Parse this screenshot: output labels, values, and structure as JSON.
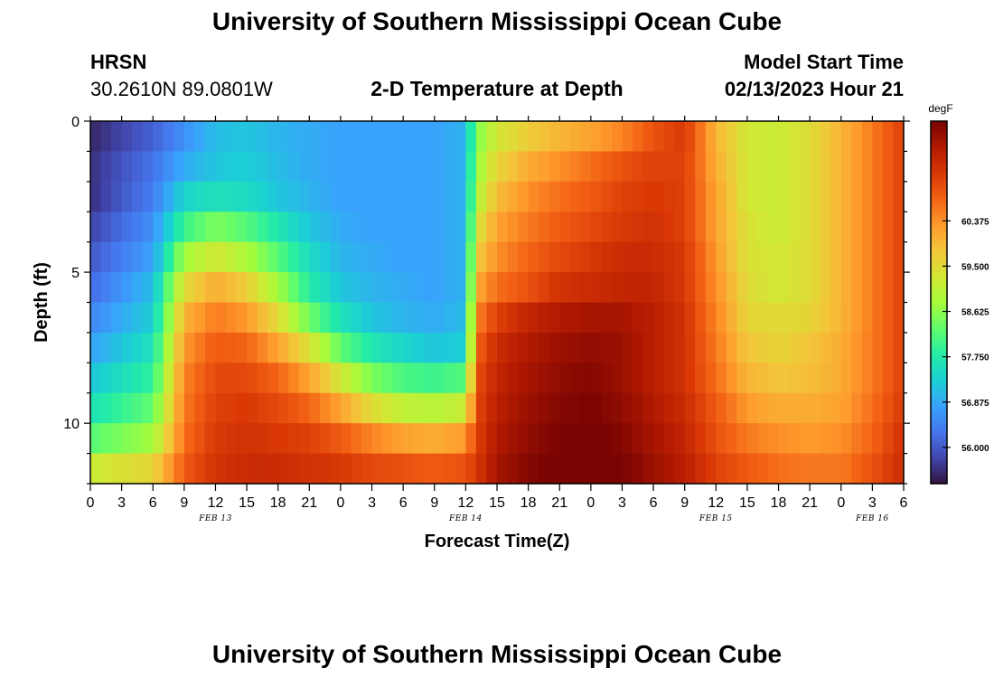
{
  "header": {
    "title": "University of Southern Mississippi Ocean Cube",
    "station": "HRSN",
    "coords": "30.2610N  89.0801W",
    "plot_title": "2-D Temperature at Depth",
    "model_label": "Model Start Time",
    "model_time": "02/13/2023 Hour 21"
  },
  "footer": {
    "title": "University of Southern Mississippi Ocean Cube"
  },
  "chart_data": {
    "type": "heatmap",
    "title": "2-D Temperature at Depth",
    "xlabel": "Forecast Time(Z)",
    "ylabel": "Depth (ft)",
    "x_hours_range": [
      0,
      78
    ],
    "x_tick_labels": [
      "0",
      "3",
      "6",
      "9",
      "12",
      "15",
      "18",
      "21",
      "0",
      "3",
      "6",
      "9",
      "12",
      "15",
      "18",
      "21",
      "0",
      "3",
      "6",
      "9",
      "12",
      "15",
      "18",
      "21",
      "0",
      "3",
      "6"
    ],
    "date_labels": [
      {
        "text": "FEB 13",
        "hour": 12
      },
      {
        "text": "FEB 14",
        "hour": 36
      },
      {
        "text": "FEB 15",
        "hour": 60
      },
      {
        "text": "FEB 16",
        "hour": 75
      }
    ],
    "ylim": [
      0,
      12
    ],
    "y_tick_labels": [
      {
        "value": 0,
        "label": "0"
      },
      {
        "value": 5,
        "label": "5"
      },
      {
        "value": 10,
        "label": "10"
      }
    ],
    "depth_levels": [
      0.5,
      1.5,
      2.5,
      3.5,
      4.5,
      5.5,
      6.5,
      7.5,
      8.5,
      9.5,
      10.5,
      11.5
    ],
    "hours": [
      0,
      6,
      9,
      12,
      15,
      18,
      21,
      24,
      27,
      30,
      33,
      36,
      37,
      39,
      42,
      45,
      48,
      51,
      54,
      57,
      60,
      63,
      66,
      69,
      72,
      75,
      78
    ],
    "values_degF": [
      [
        55.5,
        56.1,
        56.6,
        57.1,
        57.2,
        57.0,
        56.9,
        56.8,
        56.8,
        56.8,
        56.8,
        57.0,
        58.5,
        59.3,
        59.7,
        60.0,
        60.2,
        60.5,
        61.0,
        61.3,
        60.0,
        59.3,
        59.2,
        59.5,
        60.0,
        60.6,
        61.2
      ],
      [
        55.6,
        56.3,
        56.9,
        57.2,
        57.3,
        57.1,
        56.9,
        56.8,
        56.8,
        56.8,
        56.8,
        57.0,
        58.7,
        59.6,
        60.1,
        60.4,
        60.7,
        61.0,
        61.2,
        61.2,
        60.1,
        59.3,
        59.2,
        59.5,
        60.0,
        60.6,
        61.2
      ],
      [
        55.6,
        56.4,
        57.4,
        57.6,
        57.5,
        57.2,
        57.0,
        56.8,
        56.8,
        56.8,
        56.8,
        57.0,
        58.9,
        59.9,
        60.4,
        60.7,
        60.9,
        61.2,
        61.3,
        61.2,
        60.2,
        59.3,
        59.2,
        59.5,
        60.0,
        60.6,
        61.2
      ],
      [
        55.8,
        56.6,
        58.0,
        58.5,
        58.2,
        57.7,
        57.2,
        56.9,
        56.8,
        56.8,
        56.8,
        57.0,
        59.3,
        60.2,
        60.6,
        60.9,
        61.1,
        61.3,
        61.4,
        61.2,
        60.2,
        59.4,
        59.2,
        59.5,
        60.0,
        60.6,
        61.2
      ],
      [
        56.0,
        56.8,
        58.8,
        59.3,
        58.9,
        58.2,
        57.5,
        57.0,
        56.9,
        56.8,
        56.8,
        57.0,
        59.7,
        60.4,
        60.8,
        61.1,
        61.3,
        61.5,
        61.5,
        61.3,
        60.3,
        59.4,
        59.3,
        59.5,
        60.0,
        60.6,
        61.2
      ],
      [
        56.2,
        57.1,
        59.5,
        60.1,
        59.7,
        58.8,
        57.8,
        57.2,
        57.0,
        56.9,
        56.8,
        57.0,
        60.1,
        60.7,
        61.0,
        61.4,
        61.5,
        61.6,
        61.6,
        61.3,
        60.4,
        59.5,
        59.3,
        59.5,
        60.0,
        60.6,
        61.2
      ],
      [
        56.5,
        57.3,
        60.0,
        60.6,
        60.3,
        59.5,
        58.4,
        57.6,
        57.2,
        57.0,
        56.9,
        57.1,
        60.5,
        61.2,
        61.6,
        61.8,
        61.9,
        61.9,
        61.7,
        61.4,
        60.5,
        59.6,
        59.5,
        59.6,
        60.0,
        60.6,
        61.2
      ],
      [
        56.8,
        57.6,
        60.3,
        60.9,
        60.8,
        60.2,
        59.4,
        58.3,
        57.7,
        57.4,
        57.2,
        57.3,
        60.8,
        61.5,
        61.8,
        62.0,
        62.1,
        62.0,
        61.7,
        61.4,
        60.6,
        59.8,
        59.6,
        59.8,
        60.1,
        60.6,
        61.2
      ],
      [
        57.2,
        57.9,
        60.5,
        61.1,
        61.1,
        60.8,
        60.2,
        59.3,
        58.5,
        58.1,
        58.0,
        58.2,
        61.0,
        61.6,
        61.9,
        62.1,
        62.2,
        62.0,
        61.7,
        61.4,
        60.7,
        60.0,
        59.8,
        59.9,
        60.1,
        60.6,
        61.2
      ],
      [
        57.6,
        58.3,
        60.6,
        61.2,
        61.3,
        61.1,
        60.8,
        60.2,
        59.5,
        59.1,
        59.0,
        59.2,
        61.1,
        61.7,
        62.0,
        62.2,
        62.3,
        62.1,
        61.8,
        61.5,
        60.9,
        60.3,
        60.1,
        60.1,
        60.2,
        60.7,
        61.3
      ],
      [
        58.2,
        58.8,
        60.7,
        61.3,
        61.4,
        61.3,
        61.2,
        60.9,
        60.5,
        60.2,
        60.1,
        60.3,
        61.2,
        61.8,
        62.1,
        62.3,
        62.4,
        62.2,
        61.9,
        61.6,
        61.0,
        60.6,
        60.4,
        60.3,
        60.4,
        60.8,
        61.4
      ],
      [
        59.2,
        59.6,
        60.9,
        61.4,
        61.5,
        61.5,
        61.4,
        61.3,
        61.1,
        61.0,
        60.9,
        61.0,
        61.3,
        61.9,
        62.2,
        62.4,
        62.5,
        62.3,
        62.0,
        61.7,
        61.2,
        60.9,
        60.7,
        60.6,
        60.6,
        61.0,
        61.5
      ]
    ],
    "colorbar": {
      "unit": "degF",
      "tick_labels": [
        "60.375",
        "59.500",
        "58.625",
        "57.750",
        "56.875",
        "56.000"
      ],
      "tick_values": [
        60.375,
        59.5,
        58.625,
        57.75,
        56.875,
        56.0
      ],
      "vmin": 55.3,
      "vmax": 62.3
    },
    "colormap": [
      "#30123b",
      "#4145ab",
      "#4675ed",
      "#39a2fc",
      "#1bcfd4",
      "#24eca6",
      "#61fc6c",
      "#a4fc3b",
      "#d1e834",
      "#f3c63a",
      "#fe9b2d",
      "#f36315",
      "#d93806",
      "#b11901",
      "#7a0402"
    ]
  }
}
